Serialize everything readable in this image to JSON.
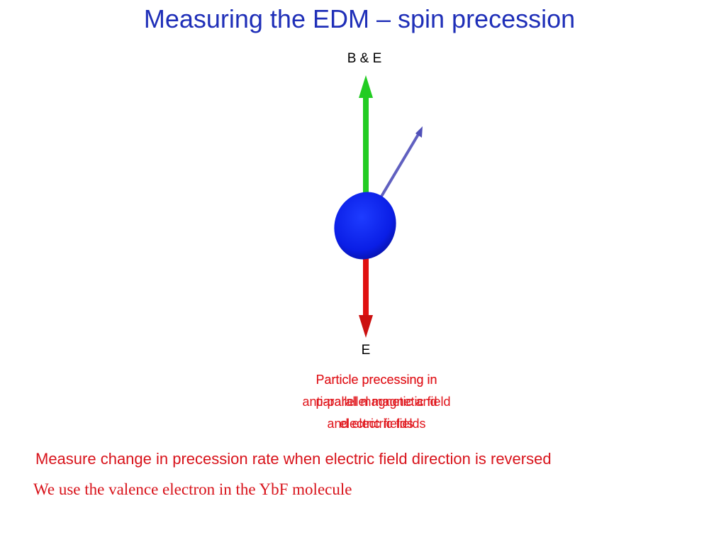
{
  "header": {
    "title": "Measuring the EDM – spin precession"
  },
  "diagram": {
    "top_label": "B & E",
    "bottom_label": "E",
    "captions": [
      {
        "lines": [
          "Particle precessing in",
          "parallel magnetic and",
          "electric fields"
        ]
      },
      {
        "lines": [
          "Particle precessing in",
          "anti-parallel magnetic field",
          "and electric fields"
        ]
      }
    ]
  },
  "body": {
    "lines": [
      "Measure change in precession rate when electric field direction is reversed",
      "We use the valence electron in the YbF molecule"
    ]
  }
}
